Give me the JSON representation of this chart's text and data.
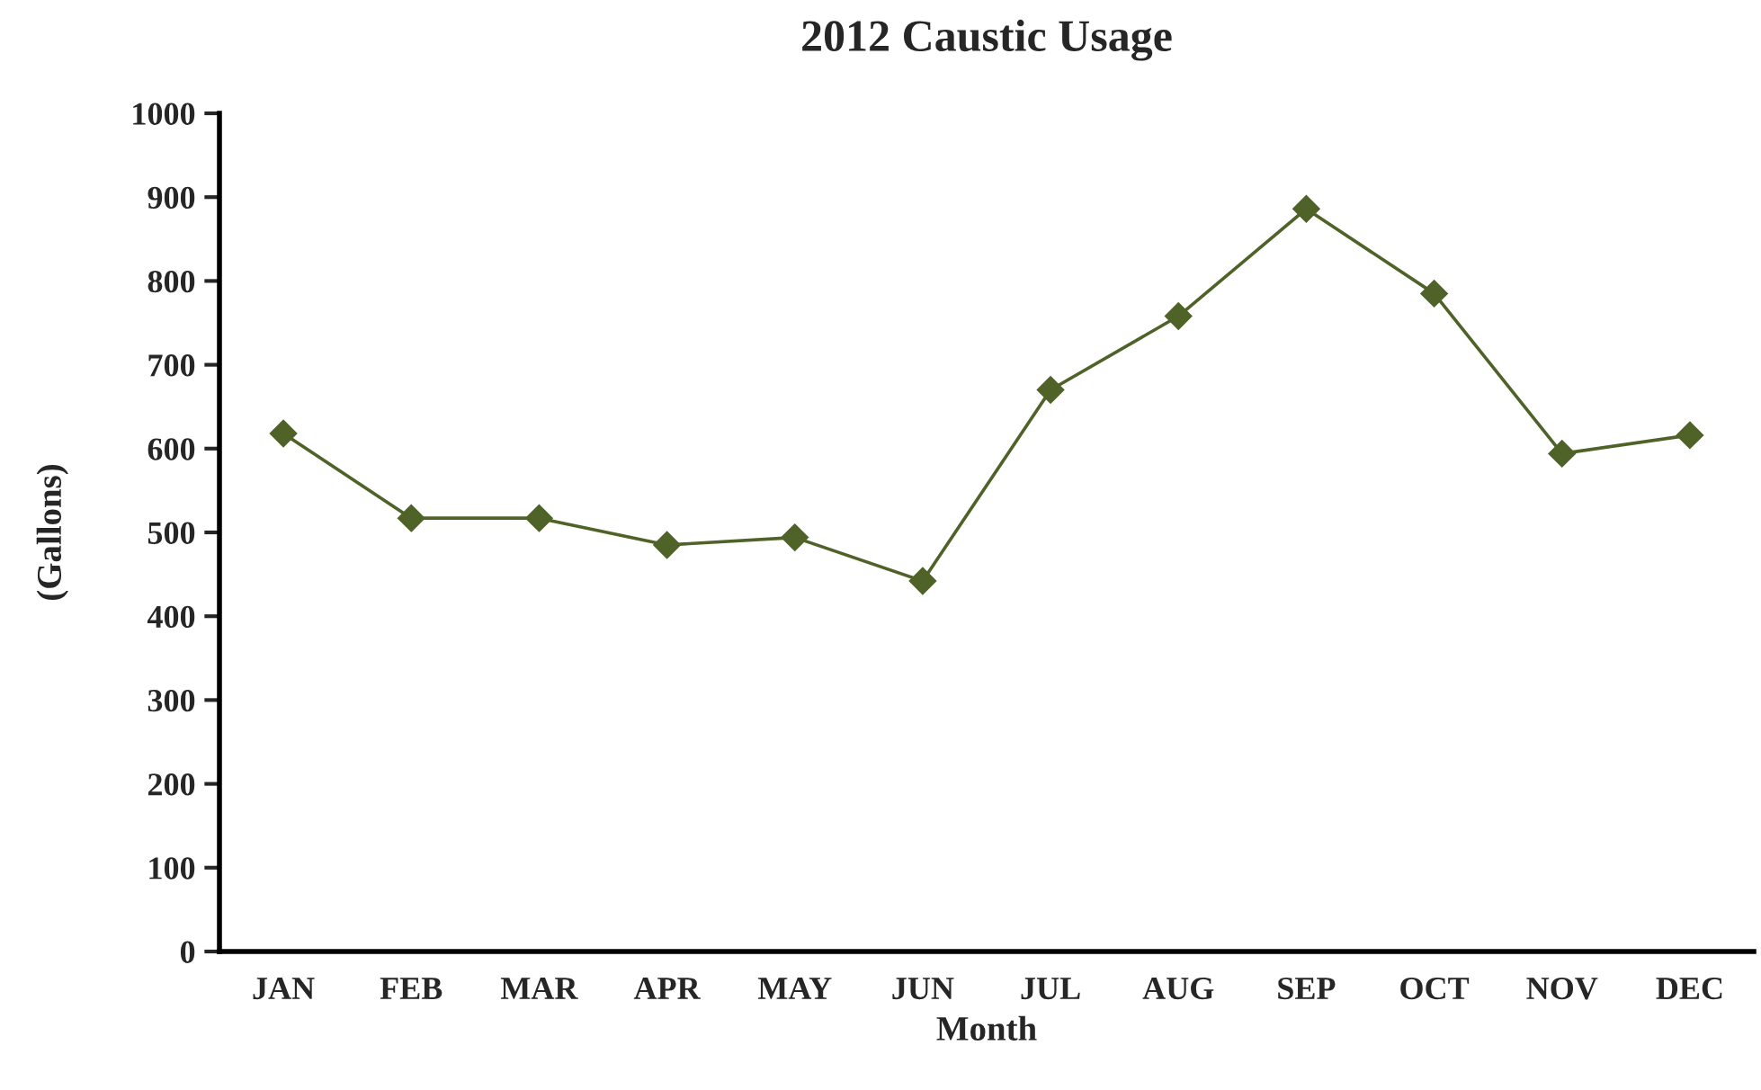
{
  "chart_data": {
    "type": "line",
    "title": "2012 Caustic Usage",
    "xlabel": "Month",
    "ylabel": "(Gallons)",
    "categories": [
      "JAN",
      "FEB",
      "MAR",
      "APR",
      "MAY",
      "JUN",
      "JUL",
      "AUG",
      "SEP",
      "OCT",
      "NOV",
      "DEC"
    ],
    "series": [
      {
        "color": "#4f6228",
        "values": [
          618,
          517,
          517,
          485,
          494,
          442,
          670,
          758,
          886,
          785,
          594,
          616
        ]
      }
    ],
    "ylim": [
      0,
      1000
    ],
    "yticks": [
      0,
      100,
      200,
      300,
      400,
      500,
      600,
      700,
      800,
      900,
      1000
    ],
    "marker": "diamond",
    "line_style": "solid",
    "grid": false,
    "legend": false
  }
}
